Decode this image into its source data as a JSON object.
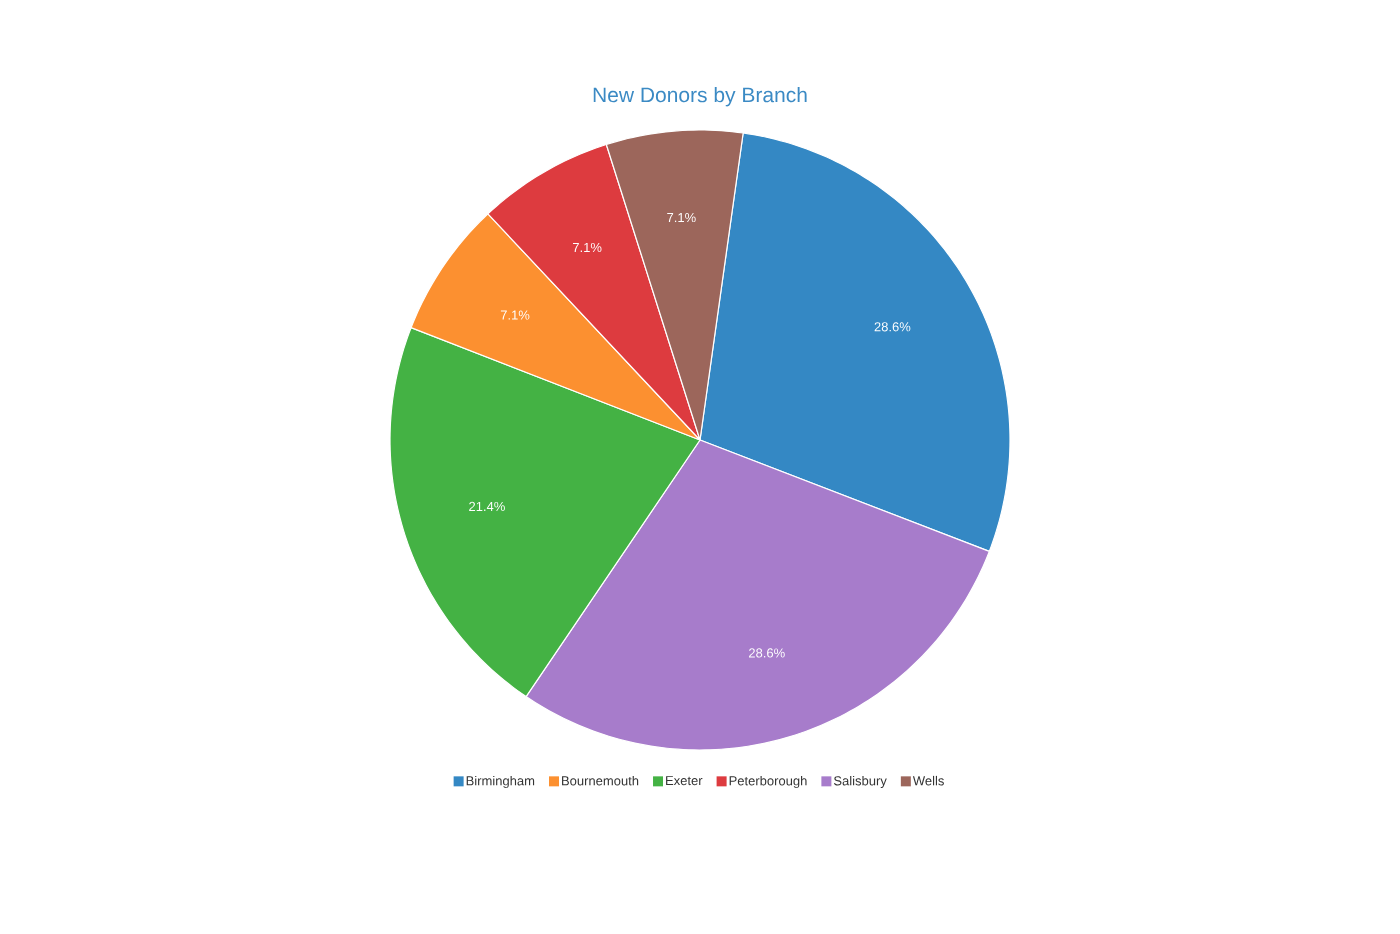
{
  "chart_data": {
    "type": "pie",
    "title": "New Donors by Branch",
    "categories": [
      "Birmingham",
      "Bournemouth",
      "Exeter",
      "Peterborough",
      "Salisbury",
      "Wells"
    ],
    "values": [
      28.6,
      7.1,
      21.4,
      7.1,
      28.6,
      7.1
    ],
    "colors": [
      "#3488c4",
      "#fc9030",
      "#44b244",
      "#dd3b3f",
      "#a77ccb",
      "#9c665b"
    ],
    "value_labels": [
      "28.6%",
      "7.1%",
      "21.4%",
      "7.1%",
      "28.6%",
      "7.1%"
    ],
    "legend": "bottom"
  }
}
